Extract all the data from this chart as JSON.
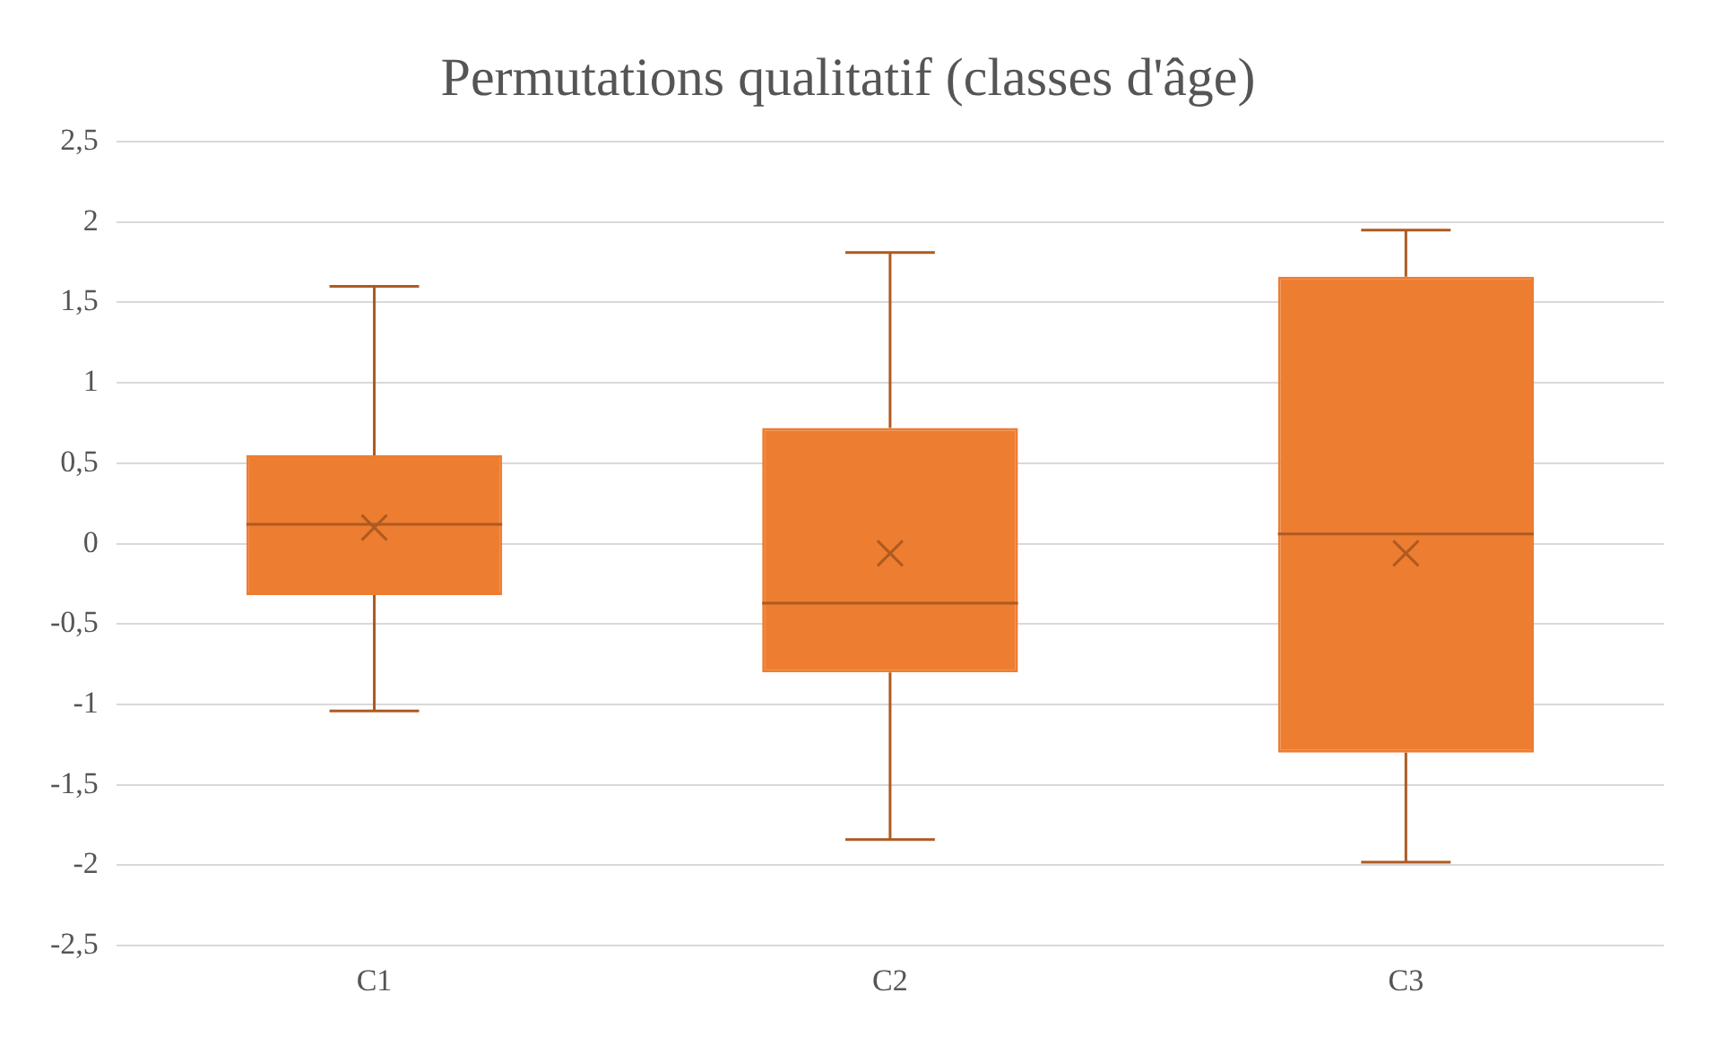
{
  "chart_data": {
    "type": "box",
    "title": "Permutations qualitatif (classes d'âge)",
    "categories": [
      "C1",
      "C2",
      "C3"
    ],
    "color": "#ed7d31",
    "boxes": [
      {
        "low": -1.04,
        "q1": -0.32,
        "median": 0.12,
        "q3": 0.55,
        "high": 1.6,
        "mean": 0.1
      },
      {
        "low": -1.84,
        "q1": -0.8,
        "median": -0.37,
        "q3": 0.72,
        "high": 1.81,
        "mean": -0.06
      },
      {
        "low": -1.98,
        "q1": -1.3,
        "median": 0.06,
        "q3": 1.66,
        "high": 1.95,
        "mean": -0.06
      }
    ],
    "ylim": [
      -2.5,
      2.5
    ],
    "yticks": [
      {
        "value": -2.5,
        "label": "-2,5"
      },
      {
        "value": -2,
        "label": "-2"
      },
      {
        "value": -1.5,
        "label": "-1,5"
      },
      {
        "value": -1,
        "label": "-1"
      },
      {
        "value": -0.5,
        "label": "-0,5"
      },
      {
        "value": 0,
        "label": "0"
      },
      {
        "value": 0.5,
        "label": "0,5"
      },
      {
        "value": 1,
        "label": "1"
      },
      {
        "value": 1.5,
        "label": "1,5"
      },
      {
        "value": 2,
        "label": "2"
      },
      {
        "value": 2.5,
        "label": "2,5"
      }
    ],
    "grid": "y",
    "legend": false,
    "marker": "cross"
  }
}
